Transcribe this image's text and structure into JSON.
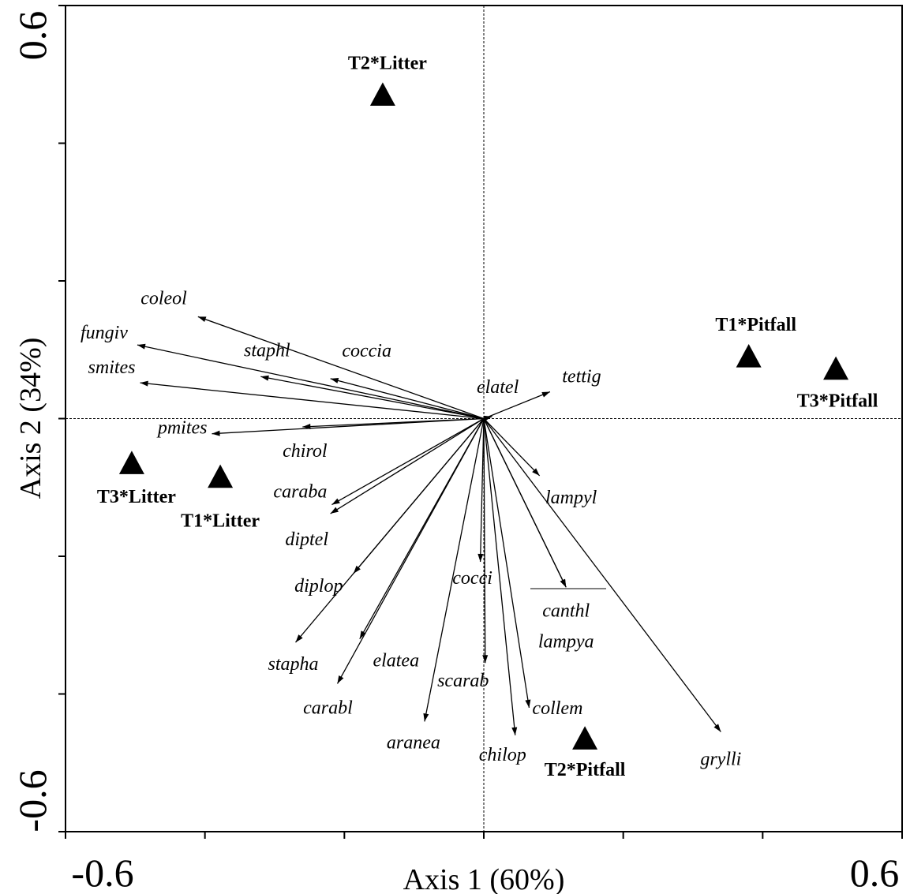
{
  "chart_data": {
    "type": "scatter",
    "subtype": "ordination-biplot",
    "title": "",
    "xlabel": "Axis 1 (60%)",
    "ylabel": "Axis 2 (34%)",
    "xlim": [
      -0.6,
      0.6
    ],
    "ylim": [
      -0.6,
      0.6
    ],
    "xtick_labels": [
      "-0.6",
      "0.6"
    ],
    "ytick_labels": [
      "-0.6",
      "0.6"
    ],
    "zero_lines": true,
    "grid": false,
    "site_series": {
      "name": "sites",
      "marker": "triangle",
      "points": [
        {
          "label": "T2*Litter",
          "x": -0.145,
          "y": 0.47
        },
        {
          "label": "T1*Pitfall",
          "x": 0.38,
          "y": 0.09
        },
        {
          "label": "T3*Pitfall",
          "x": 0.505,
          "y": 0.072
        },
        {
          "label": "T3*Litter",
          "x": -0.505,
          "y": -0.065
        },
        {
          "label": "T1*Litter",
          "x": -0.378,
          "y": -0.085
        },
        {
          "label": "T2*Pitfall",
          "x": 0.145,
          "y": -0.465
        }
      ]
    },
    "species_arrows": [
      {
        "label": "coleol",
        "x": -0.41,
        "y": 0.148
      },
      {
        "label": "fungiv",
        "x": -0.497,
        "y": 0.107
      },
      {
        "label": "smites",
        "x": -0.493,
        "y": 0.052
      },
      {
        "label": "staphl",
        "x": -0.32,
        "y": 0.061
      },
      {
        "label": "coccia",
        "x": -0.22,
        "y": 0.058
      },
      {
        "label": "elatel",
        "x": 0.012,
        "y": 0.003
      },
      {
        "label": "tettig",
        "x": 0.095,
        "y": 0.039
      },
      {
        "label": "pmites",
        "x": -0.39,
        "y": -0.022
      },
      {
        "label": "chirol",
        "x": -0.26,
        "y": -0.012
      },
      {
        "label": "lampyl",
        "x": 0.08,
        "y": -0.083
      },
      {
        "label": "caraba",
        "x": -0.218,
        "y": -0.125
      },
      {
        "label": "diptel",
        "x": -0.22,
        "y": -0.138
      },
      {
        "label": "diplop",
        "x": -0.187,
        "y": -0.225
      },
      {
        "label": "stapha",
        "x": -0.27,
        "y": -0.325
      },
      {
        "label": "elatea",
        "x": -0.178,
        "y": -0.32
      },
      {
        "label": "carabl",
        "x": -0.21,
        "y": -0.385
      },
      {
        "label": "aranea",
        "x": -0.085,
        "y": -0.44
      },
      {
        "label": "cocci",
        "x": -0.005,
        "y": -0.208
      },
      {
        "label": "scarab",
        "x": 0.002,
        "y": -0.355
      },
      {
        "label": "chilop",
        "x": 0.045,
        "y": -0.46
      },
      {
        "label": "collem",
        "x": 0.065,
        "y": -0.42
      },
      {
        "label": "canthl",
        "x": 0.118,
        "y": -0.245
      },
      {
        "label": "lampya",
        "x": 0.118,
        "y": -0.245
      },
      {
        "label": "grylli",
        "x": 0.34,
        "y": -0.455
      }
    ]
  }
}
